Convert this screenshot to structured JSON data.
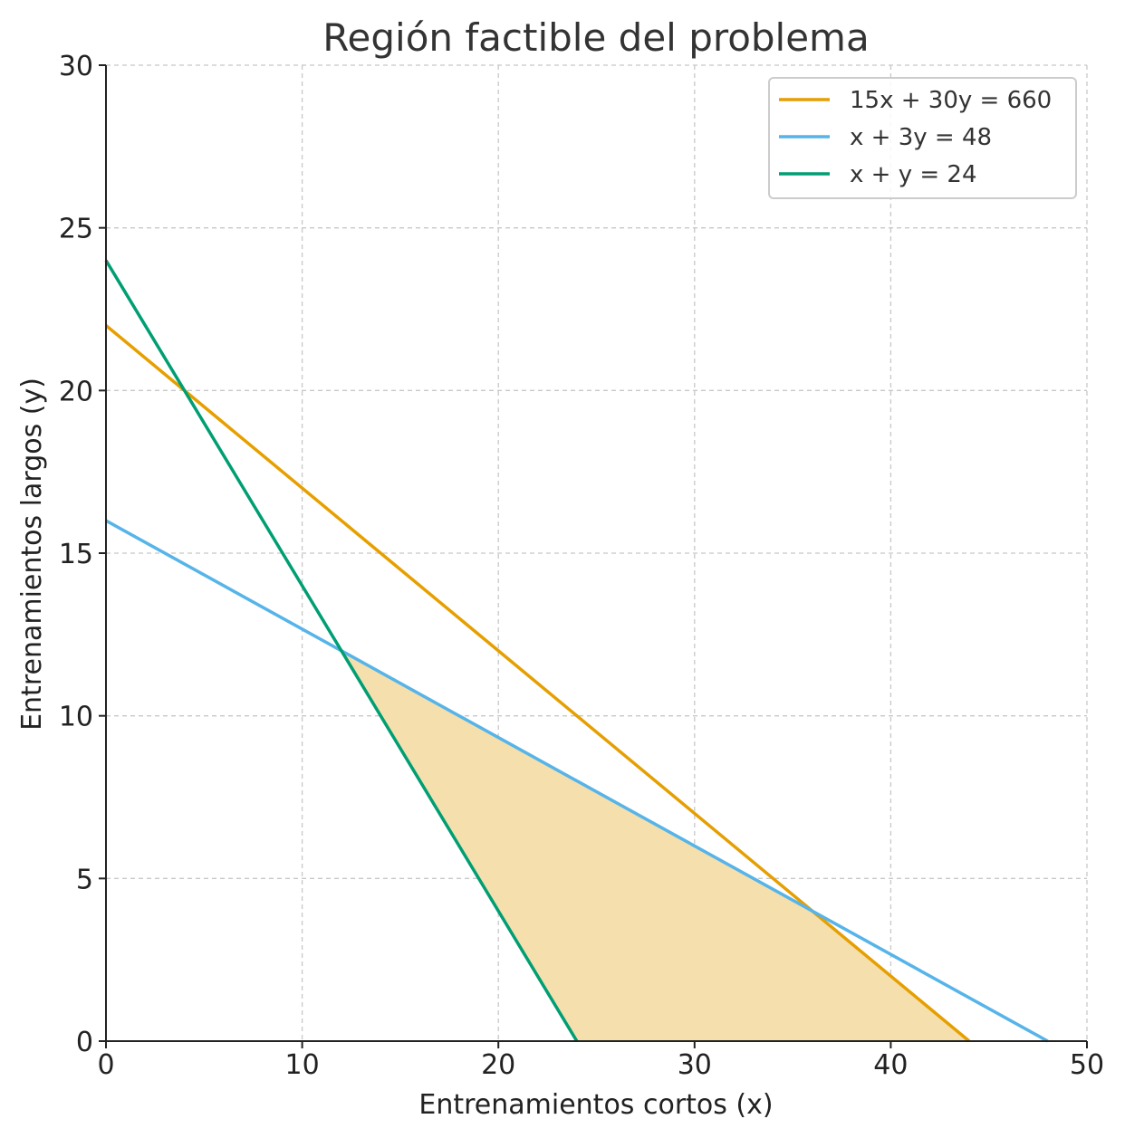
{
  "chart_data": {
    "type": "line",
    "title": "Región factible del problema",
    "xlabel": "Entrenamientos cortos (x)",
    "ylabel": "Entrenamientos largos (y)",
    "xlim": [
      0,
      50
    ],
    "ylim": [
      0,
      30
    ],
    "xticks": [
      0,
      10,
      20,
      30,
      40,
      50
    ],
    "yticks": [
      0,
      5,
      10,
      15,
      20,
      25,
      30
    ],
    "xtick_labels": [
      "0",
      "10",
      "20",
      "30",
      "40",
      "50"
    ],
    "ytick_labels": [
      "0",
      "5",
      "10",
      "15",
      "20",
      "25",
      "30"
    ],
    "grid": true,
    "legend_position": "top-right",
    "series": [
      {
        "name": "15x + 30y = 660",
        "color": "#E69F00",
        "x": [
          0,
          44
        ],
        "y": [
          22,
          0
        ]
      },
      {
        "name": "x + 3y = 48",
        "color": "#56B4E9",
        "x": [
          0,
          48
        ],
        "y": [
          16,
          0
        ]
      },
      {
        "name": "x + y = 24",
        "color": "#009E73",
        "x": [
          0,
          24
        ],
        "y": [
          24,
          0
        ]
      }
    ],
    "feasible_region": {
      "color": "#F5DFAD",
      "vertices": [
        [
          12,
          12
        ],
        [
          24,
          0
        ],
        [
          44,
          0
        ],
        [
          36,
          4
        ]
      ]
    }
  }
}
